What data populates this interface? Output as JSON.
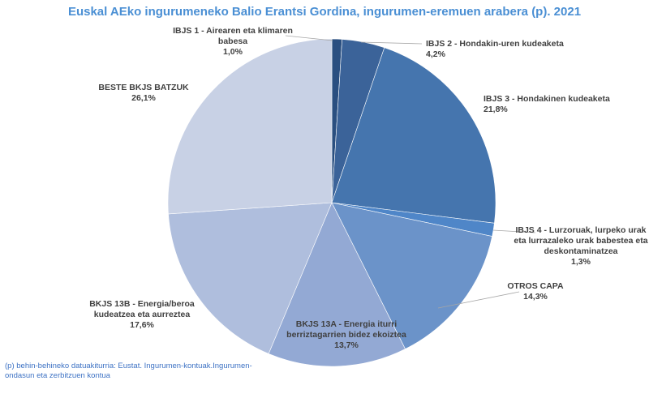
{
  "chart_data": {
    "type": "pie",
    "title": "Euskal AEko ingurumeneko Balio Erantsi Gordina, ingurumen-eremuen arabera (p). 2021",
    "slices": [
      {
        "label": [
          "IBJS 1 - Airearen eta klimaren",
          "babesa"
        ],
        "value_label": "1,0%",
        "value": 1.0,
        "color": "#2a4f80"
      },
      {
        "label": [
          "IBJS 2 - Hondakin-uren kudeaketa"
        ],
        "value_label": "4,2%",
        "value": 4.2,
        "color": "#3b6399"
      },
      {
        "label": [
          "IBJS 3 - Hondakinen kudeaketa"
        ],
        "value_label": "21,8%",
        "value": 21.8,
        "color": "#4575ae"
      },
      {
        "label": [
          "IBJS 4 - Lurzoruak, lurpeko urak",
          "eta lurrazaleko urak babestea eta",
          "deskontaminatzea"
        ],
        "value_label": "1,3%",
        "value": 1.3,
        "color": "#4f86c8"
      },
      {
        "label": [
          "OTROS CAPA"
        ],
        "value_label": "14,3%",
        "value": 14.3,
        "color": "#6b93c9"
      },
      {
        "label": [
          "BKJS 13A - Energia iturri",
          "berriztagarrien bidez ekoiztea"
        ],
        "value_label": "13,7%",
        "value": 13.7,
        "color": "#93a9d4"
      },
      {
        "label": [
          "BKJS 13B - Energia/beroa",
          "kudeatzea eta aurreztea"
        ],
        "value_label": "17,6%",
        "value": 17.6,
        "color": "#afbedd"
      },
      {
        "label": [
          "BESTE BKJS BATZUK"
        ],
        "value_label": "26,1%",
        "value": 26.1,
        "color": "#c8d1e5"
      }
    ],
    "start_angle_deg": 0,
    "direction": "clockwise"
  },
  "footnote": "(p) behin-behineko datuakiturria: Eustat. Ingurumen-kontuak.Ingurumen-ondasun eta zerbitzuen kontua"
}
